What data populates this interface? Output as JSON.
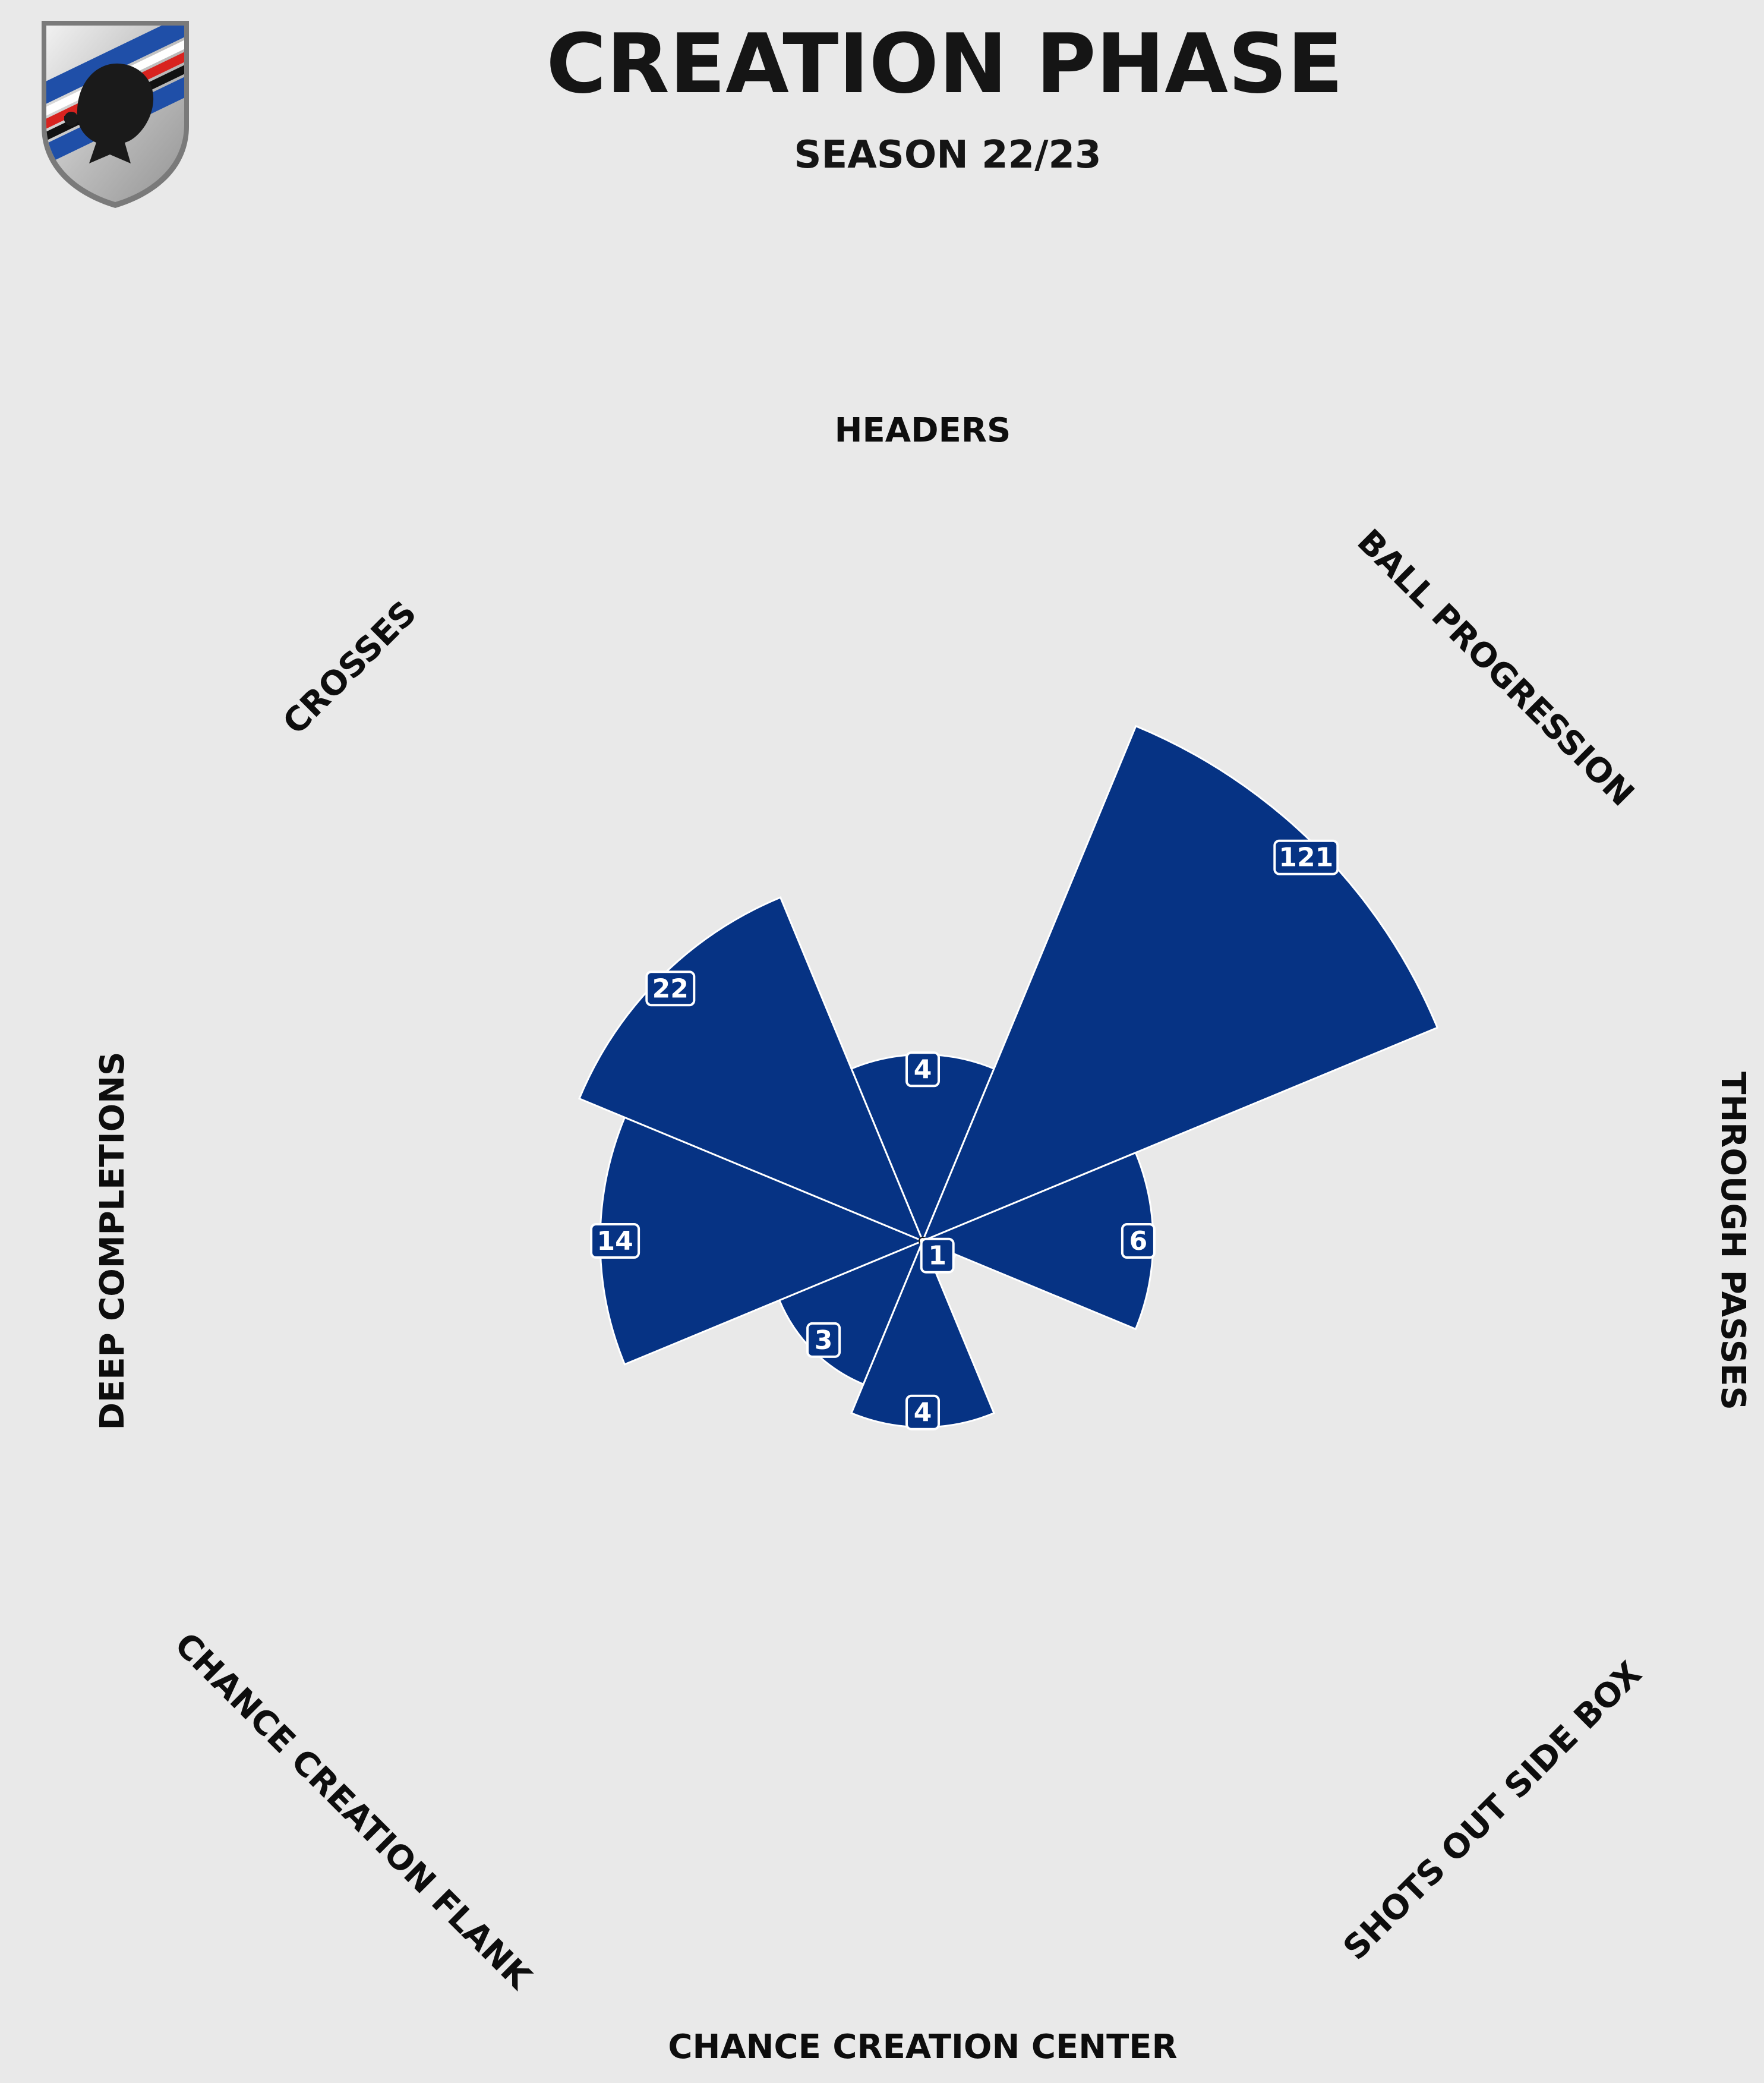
{
  "title": "CREATION PHASE",
  "subtitle": "SEASON 22/23",
  "logo": {
    "icon": "sampdoria-crest-icon",
    "colors": [
      "#1f4fa8",
      "#ffffff",
      "#d8231f",
      "#111111"
    ]
  },
  "colors": {
    "background": "#e9e9e9",
    "bar_fill": "#063384",
    "bar_edge": "#ffffff",
    "label_box": "#063384",
    "label_border": "#ffffff"
  },
  "chart_data": {
    "type": "polar-bar",
    "title": "CREATION PHASE",
    "subtitle": "SEASON 22/23",
    "radial_scale": "log",
    "categories": [
      "HEADERS",
      "BALL PROGRESSION",
      "THROUGH PASSES",
      "SHOTS OUT SIDE BOX",
      "CHANCE CREATION CENTER",
      "CHANCE CREATION FLANK",
      "DEEP COMPLETIONS",
      "CROSSES"
    ],
    "values": [
      4,
      121,
      6,
      1,
      4,
      3,
      14,
      22
    ],
    "value_labels": [
      "4",
      "121",
      "6",
      "1",
      "4",
      "3",
      "14",
      "22"
    ],
    "grid": false,
    "legend": "none"
  }
}
